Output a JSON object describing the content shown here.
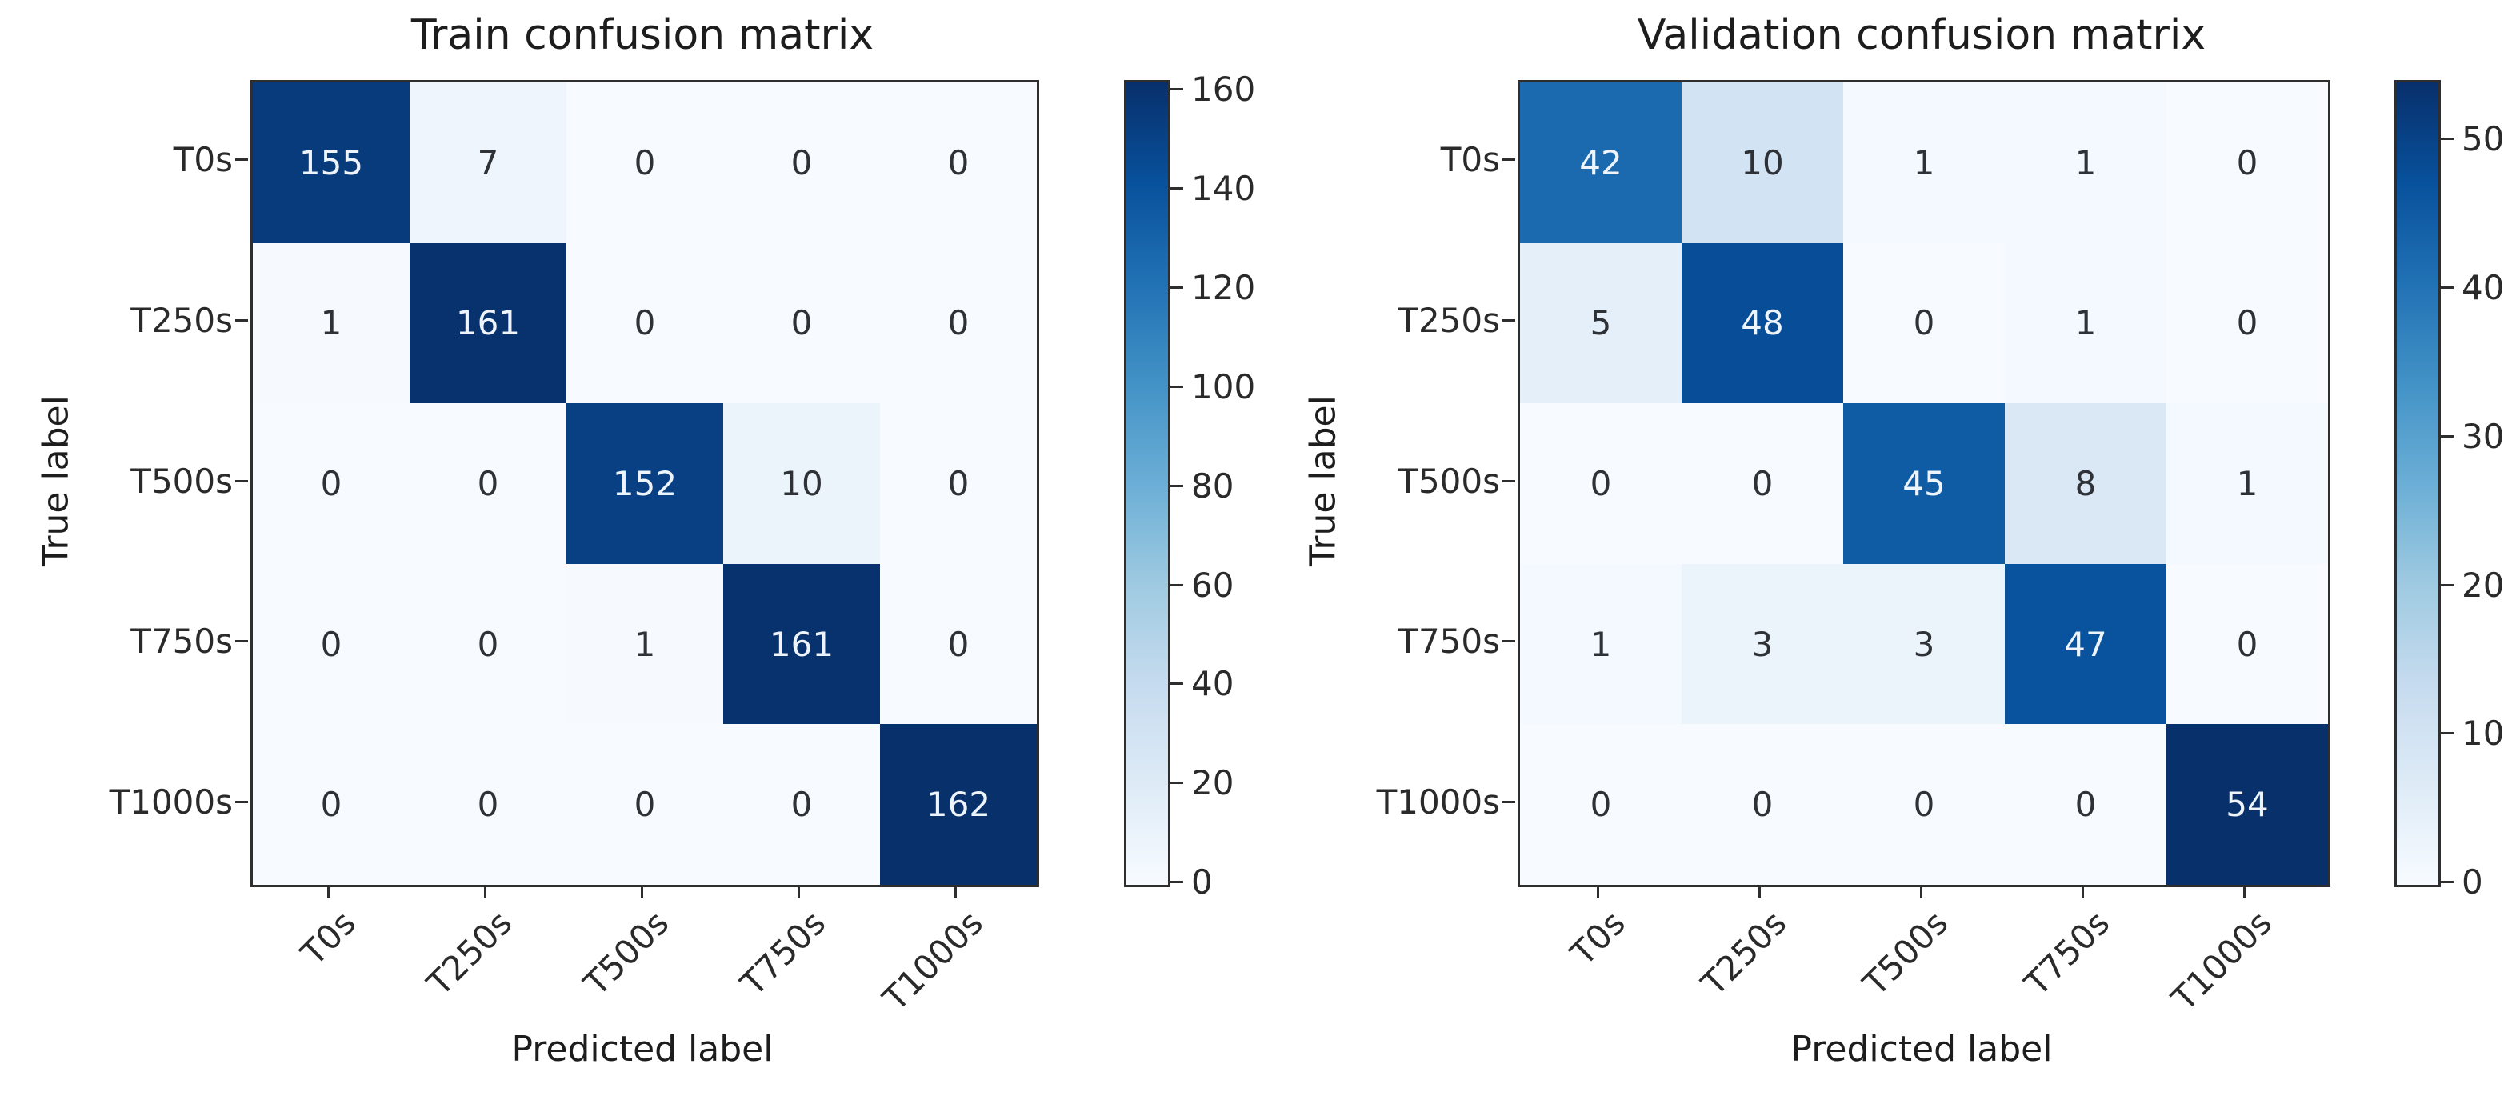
{
  "figure": {
    "background": "#ffffff",
    "text_color": "#222222",
    "spine_color": "#2e2e2e"
  },
  "colormap": {
    "name": "Blues",
    "stops": [
      "#f7fbff",
      "#deebf7",
      "#c6dbef",
      "#9ecae1",
      "#6baed6",
      "#4292c6",
      "#2171b5",
      "#08519c",
      "#08306b"
    ],
    "light_cell_text": "#2e3136",
    "dark_cell_text": "#eef4fb"
  },
  "chart_data": [
    {
      "type": "heatmap",
      "title": "Train confusion matrix",
      "xlabel": "Predicted label",
      "ylabel": "True label",
      "categories": [
        "T0s",
        "T250s",
        "T500s",
        "T750s",
        "T1000s"
      ],
      "matrix": [
        [
          155,
          7,
          0,
          0,
          0
        ],
        [
          1,
          161,
          0,
          0,
          0
        ],
        [
          0,
          0,
          152,
          10,
          0
        ],
        [
          0,
          0,
          1,
          161,
          0
        ],
        [
          0,
          0,
          0,
          0,
          162
        ]
      ],
      "vmin": 0,
      "vmax": 162,
      "colorbar_ticks": [
        0,
        20,
        40,
        60,
        80,
        100,
        120,
        140,
        160
      ],
      "legend_position": "right-colorbar",
      "grid": false
    },
    {
      "type": "heatmap",
      "title": "Validation confusion matrix",
      "xlabel": "Predicted label",
      "ylabel": "True label",
      "categories": [
        "T0s",
        "T250s",
        "T500s",
        "T750s",
        "T1000s"
      ],
      "matrix": [
        [
          42,
          10,
          1,
          1,
          0
        ],
        [
          5,
          48,
          0,
          1,
          0
        ],
        [
          0,
          0,
          45,
          8,
          1
        ],
        [
          1,
          3,
          3,
          47,
          0
        ],
        [
          0,
          0,
          0,
          0,
          54
        ]
      ],
      "vmin": 0,
      "vmax": 54,
      "colorbar_ticks": [
        0,
        10,
        20,
        30,
        40,
        50
      ],
      "legend_position": "right-colorbar",
      "grid": false
    }
  ]
}
